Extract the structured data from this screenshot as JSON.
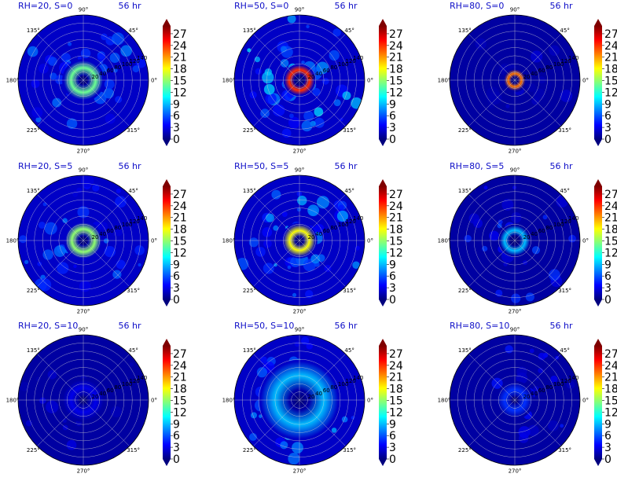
{
  "figure": {
    "colormap": [
      "#00007f",
      "#0000ff",
      "#007fff",
      "#00ffff",
      "#7fff7f",
      "#ffff00",
      "#ff7f00",
      "#ff0000",
      "#7f0000"
    ]
  },
  "chart_data": [
    {
      "type": "heatmap",
      "projection": "polar",
      "title": "RH=20, S=0",
      "time_label": "56 hr",
      "angle_ticks": [
        "0°",
        "45°",
        "90°",
        "135°",
        "180°",
        "225°",
        "270°",
        "315°"
      ],
      "radial_ticks": [
        "20",
        "40",
        "60",
        "80",
        "100",
        "120",
        "140"
      ],
      "radial_max": 160,
      "eye_radius": 10,
      "peak_radius": 30,
      "peak_value": 14,
      "ring_width": 18,
      "background": 2,
      "blob_level": 5,
      "blob_count": 45,
      "seed": 11,
      "colorbar": {
        "ticks": [
          0,
          3,
          6,
          9,
          12,
          15,
          18,
          21,
          24,
          27
        ],
        "min": 0,
        "max": 29,
        "extend": "both"
      }
    },
    {
      "type": "heatmap",
      "projection": "polar",
      "title": "RH=50, S=0",
      "time_label": "56 hr",
      "angle_ticks": [
        "0°",
        "45°",
        "90°",
        "135°",
        "180°",
        "225°",
        "270°",
        "315°"
      ],
      "radial_ticks": [
        "20",
        "40",
        "60",
        "80",
        "100",
        "120",
        "140"
      ],
      "radial_max": 160,
      "eye_radius": 12,
      "peak_radius": 25,
      "peak_value": 24,
      "ring_width": 12,
      "background": 2,
      "blob_level": 7,
      "blob_count": 50,
      "seed": 23,
      "colorbar": {
        "ticks": [
          0,
          3,
          6,
          9,
          12,
          15,
          18,
          21,
          24,
          27
        ],
        "min": 0,
        "max": 29,
        "extend": "both"
      }
    },
    {
      "type": "heatmap",
      "projection": "polar",
      "title": "RH=80, S=0",
      "time_label": "56 hr",
      "angle_ticks": [
        "0°",
        "45°",
        "90°",
        "135°",
        "180°",
        "225°",
        "270°",
        "315°"
      ],
      "radial_ticks": [
        "20",
        "40",
        "60",
        "80",
        "100",
        "120",
        "140"
      ],
      "radial_max": 160,
      "eye_radius": 8,
      "peak_radius": 16,
      "peak_value": 22,
      "ring_width": 10,
      "background": 1,
      "blob_level": 2,
      "blob_count": 20,
      "seed": 37,
      "colorbar": {
        "ticks": [
          0,
          3,
          6,
          9,
          12,
          15,
          18,
          21,
          24,
          27
        ],
        "min": 0,
        "max": 29,
        "extend": "both"
      }
    },
    {
      "type": "heatmap",
      "projection": "polar",
      "title": "RH=20, S=5",
      "time_label": "56 hr",
      "angle_ticks": [
        "0°",
        "45°",
        "90°",
        "135°",
        "180°",
        "225°",
        "270°",
        "315°"
      ],
      "radial_ticks": [
        "20",
        "40",
        "60",
        "80",
        "100",
        "120",
        "140"
      ],
      "radial_max": 160,
      "eye_radius": 10,
      "peak_radius": 28,
      "peak_value": 15,
      "ring_width": 16,
      "background": 2,
      "blob_level": 5,
      "blob_count": 40,
      "seed": 41,
      "colorbar": {
        "ticks": [
          0,
          3,
          6,
          9,
          12,
          15,
          18,
          21,
          24,
          27
        ],
        "min": 0,
        "max": 29,
        "extend": "both"
      }
    },
    {
      "type": "heatmap",
      "projection": "polar",
      "title": "RH=50, S=5",
      "time_label": "56 hr",
      "angle_ticks": [
        "0°",
        "45°",
        "90°",
        "135°",
        "180°",
        "225°",
        "270°",
        "315°"
      ],
      "radial_ticks": [
        "20",
        "40",
        "60",
        "80",
        "100",
        "120",
        "140"
      ],
      "radial_max": 160,
      "eye_radius": 10,
      "peak_radius": 24,
      "peak_value": 18,
      "ring_width": 16,
      "background": 2,
      "blob_level": 6,
      "blob_count": 50,
      "seed": 53,
      "colorbar": {
        "ticks": [
          0,
          3,
          6,
          9,
          12,
          15,
          18,
          21,
          24,
          27
        ],
        "min": 0,
        "max": 29,
        "extend": "both"
      }
    },
    {
      "type": "heatmap",
      "projection": "polar",
      "title": "RH=80, S=5",
      "time_label": "56 hr",
      "angle_ticks": [
        "0°",
        "45°",
        "90°",
        "135°",
        "180°",
        "225°",
        "270°",
        "315°"
      ],
      "radial_ticks": [
        "20",
        "40",
        "60",
        "80",
        "100",
        "120",
        "140"
      ],
      "radial_max": 160,
      "eye_radius": 10,
      "peak_radius": 25,
      "peak_value": 9,
      "ring_width": 12,
      "background": 1,
      "blob_level": 4,
      "blob_count": 30,
      "seed": 67,
      "colorbar": {
        "ticks": [
          0,
          3,
          6,
          9,
          12,
          15,
          18,
          21,
          24,
          27
        ],
        "min": 0,
        "max": 29,
        "extend": "both"
      }
    },
    {
      "type": "heatmap",
      "projection": "polar",
      "title": "RH=20, S=10",
      "time_label": "56 hr",
      "angle_ticks": [
        "0°",
        "45°",
        "90°",
        "135°",
        "180°",
        "225°",
        "270°",
        "315°"
      ],
      "radial_ticks": [
        "20",
        "40",
        "60",
        "80",
        "100",
        "120",
        "140"
      ],
      "radial_max": 160,
      "eye_radius": 8,
      "peak_radius": 30,
      "peak_value": 3,
      "ring_width": 20,
      "background": 1,
      "blob_level": 2,
      "blob_count": 15,
      "seed": 71,
      "colorbar": {
        "ticks": [
          0,
          3,
          6,
          9,
          12,
          15,
          18,
          21,
          24,
          27
        ],
        "min": 0,
        "max": 29,
        "extend": "both"
      }
    },
    {
      "type": "heatmap",
      "projection": "polar",
      "title": "RH=50, S=10",
      "time_label": "56 hr",
      "angle_ticks": [
        "0°",
        "45°",
        "90°",
        "135°",
        "180°",
        "225°",
        "270°",
        "315°"
      ],
      "radial_ticks": [
        "20",
        "40",
        "60",
        "80",
        "100",
        "120",
        "140"
      ],
      "radial_max": 160,
      "eye_radius": 8,
      "peak_radius": 60,
      "peak_value": 9,
      "ring_width": 35,
      "background": 2,
      "blob_level": 6,
      "blob_count": 40,
      "seed": 83,
      "colorbar": {
        "ticks": [
          0,
          3,
          6,
          9,
          12,
          15,
          18,
          21,
          24,
          27
        ],
        "min": 0,
        "max": 29,
        "extend": "both"
      }
    },
    {
      "type": "heatmap",
      "projection": "polar",
      "title": "RH=80, S=10",
      "time_label": "56 hr",
      "angle_ticks": [
        "0°",
        "45°",
        "90°",
        "135°",
        "180°",
        "225°",
        "270°",
        "315°"
      ],
      "radial_ticks": [
        "20",
        "40",
        "60",
        "80",
        "100",
        "120",
        "140"
      ],
      "radial_max": 160,
      "eye_radius": 8,
      "peak_radius": 25,
      "peak_value": 5,
      "ring_width": 18,
      "background": 1,
      "blob_level": 3,
      "blob_count": 25,
      "seed": 97,
      "colorbar": {
        "ticks": [
          0,
          3,
          6,
          9,
          12,
          15,
          18,
          21,
          24,
          27
        ],
        "min": 0,
        "max": 29,
        "extend": "both"
      }
    }
  ]
}
